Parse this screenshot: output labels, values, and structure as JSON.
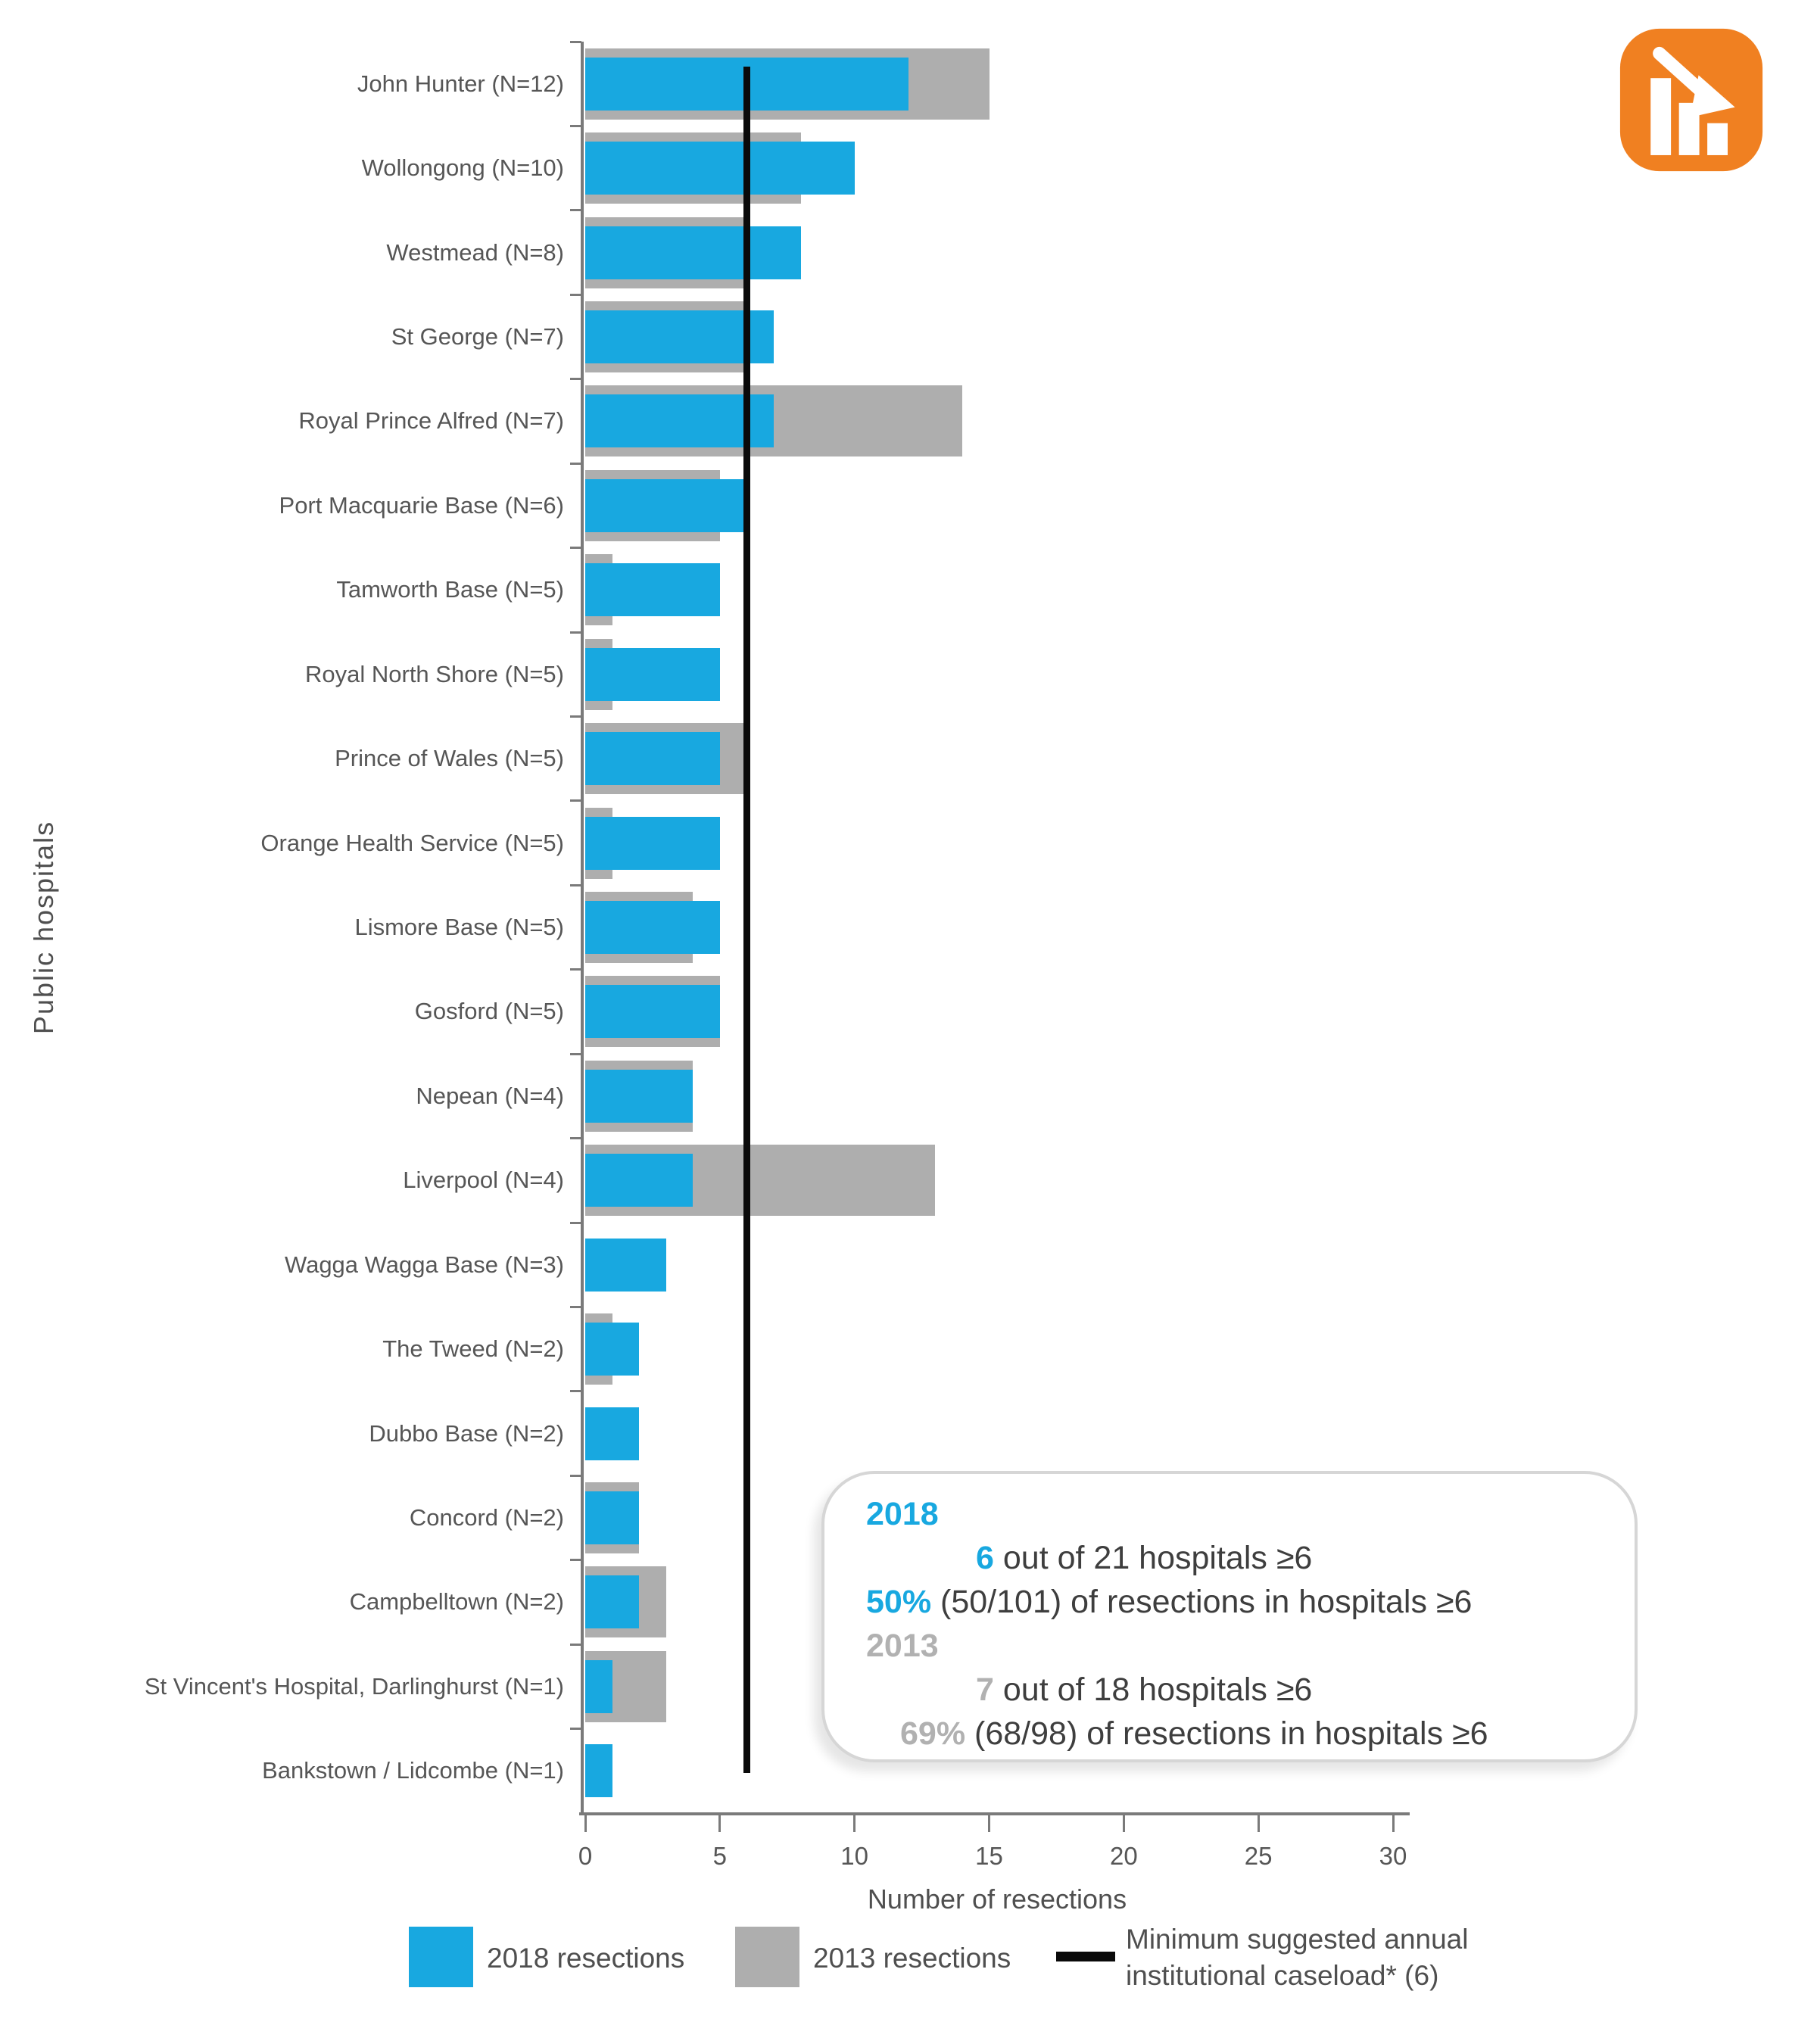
{
  "chart_data": {
    "type": "bar",
    "orientation": "horizontal",
    "xlabel": "Number of resections",
    "ylabel": "Public hospitals",
    "xlim": [
      0,
      30
    ],
    "xticks": [
      0,
      5,
      10,
      15,
      20,
      25,
      30
    ],
    "grid": false,
    "legend_position": "bottom",
    "categories": [
      "John Hunter (N=12)",
      "Wollongong (N=10)",
      "Westmead (N=8)",
      "St George (N=7)",
      "Royal Prince Alfred (N=7)",
      "Port Macquarie Base (N=6)",
      "Tamworth Base (N=5)",
      "Royal North Shore (N=5)",
      "Prince of Wales (N=5)",
      "Orange Health Service (N=5)",
      "Lismore Base (N=5)",
      "Gosford (N=5)",
      "Nepean (N=4)",
      "Liverpool (N=4)",
      "Wagga Wagga Base (N=3)",
      "The Tweed (N=2)",
      "Dubbo Base (N=2)",
      "Concord (N=2)",
      "Campbelltown (N=2)",
      "St Vincent's Hospital, Darlinghurst (N=1)",
      "Bankstown / Lidcombe (N=1)"
    ],
    "series": [
      {
        "name": "2018 resections",
        "color": "#18a8e0",
        "values": [
          12,
          10,
          8,
          7,
          7,
          6,
          5,
          5,
          5,
          5,
          5,
          5,
          4,
          4,
          3,
          2,
          2,
          2,
          2,
          1,
          1
        ]
      },
      {
        "name": "2013 resections",
        "color": "#aeaeae",
        "values": [
          15,
          8,
          6,
          6,
          14,
          5,
          1,
          1,
          6,
          1,
          4,
          5,
          4,
          13,
          0,
          1,
          0,
          2,
          3,
          3,
          0
        ]
      }
    ],
    "reference_line": {
      "value": 6,
      "color": "#0a0a0a",
      "label": "Minimum suggested annual institutional caseload* (6)"
    }
  },
  "legend": {
    "items": [
      {
        "label": "2018 resections",
        "swatch": "blue-square"
      },
      {
        "label": "2013 resections",
        "swatch": "gray-square"
      },
      {
        "label": "Minimum suggested annual\ninstitutional caseload* (6)",
        "swatch": "black-line"
      }
    ]
  },
  "annotation": {
    "lines": [
      {
        "indent": 0,
        "parts": [
          {
            "text": "2018",
            "style": "blue-bold"
          }
        ]
      },
      {
        "indent": 145,
        "parts": [
          {
            "text": "6",
            "style": "blue-bold"
          },
          {
            "text": " out of 21 hospitals ≥6",
            "style": "dark"
          }
        ]
      },
      {
        "indent": 0,
        "parts": [
          {
            "text": "50%",
            "style": "blue-bold"
          },
          {
            "text": " (50/101) of resections in hospitals ≥6",
            "style": "dark"
          }
        ]
      },
      {
        "indent": 0,
        "parts": [
          {
            "text": "2013",
            "style": "gray-bold"
          }
        ]
      },
      {
        "indent": 145,
        "parts": [
          {
            "text": "7",
            "style": "gray-bold"
          },
          {
            "text": " out of 18 hospitals ≥6",
            "style": "dark"
          }
        ]
      },
      {
        "indent": 45,
        "parts": [
          {
            "text": "69%",
            "style": "gray-bold"
          },
          {
            "text": " (68/98) of resections in hospitals ≥6",
            "style": "dark"
          }
        ]
      }
    ]
  },
  "icon": {
    "name": "declining-bar-chart-icon",
    "background_color": "#f08021",
    "glyph_color": "#ffffff"
  }
}
